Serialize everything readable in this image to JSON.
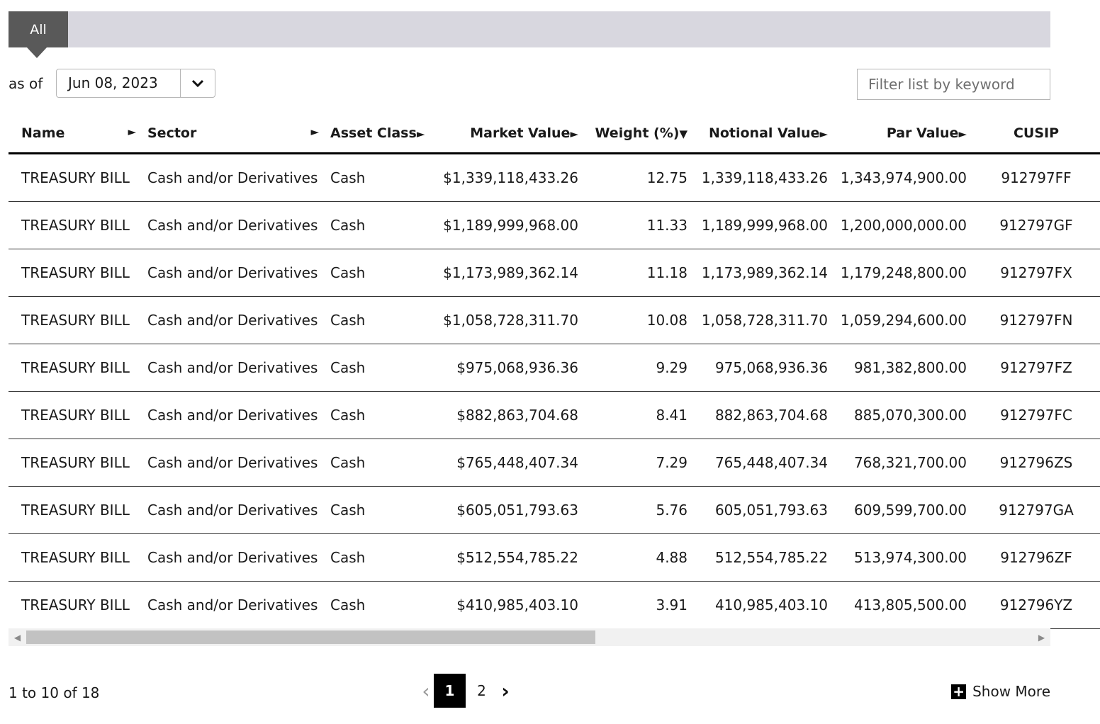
{
  "tabs": [
    {
      "label": "All"
    }
  ],
  "filter": {
    "as_of_label": "as of",
    "date": "Jun 08, 2023"
  },
  "search": {
    "placeholder": "Filter list by keyword"
  },
  "table": {
    "columns": [
      {
        "label": "Name",
        "arrow": "►"
      },
      {
        "label": "Sector",
        "arrow": "►"
      },
      {
        "label": "Asset Class",
        "arrow": "►"
      },
      {
        "label": "Market Value",
        "arrow": "►"
      },
      {
        "label": "Weight (%)",
        "arrow": "▼"
      },
      {
        "label": "Notional Value",
        "arrow": "►"
      },
      {
        "label": "Par Value",
        "arrow": "►"
      },
      {
        "label": "CUSIP",
        "arrow": ""
      }
    ],
    "rows": [
      {
        "name": "TREASURY BILL",
        "sector": "Cash and/or Derivatives",
        "asset_class": "Cash",
        "market_value": "$1,339,118,433.26",
        "weight": "12.75",
        "notional": "1,339,118,433.26",
        "par": "1,343,974,900.00",
        "cusip": "912797FF"
      },
      {
        "name": "TREASURY BILL",
        "sector": "Cash and/or Derivatives",
        "asset_class": "Cash",
        "market_value": "$1,189,999,968.00",
        "weight": "11.33",
        "notional": "1,189,999,968.00",
        "par": "1,200,000,000.00",
        "cusip": "912797GF"
      },
      {
        "name": "TREASURY BILL",
        "sector": "Cash and/or Derivatives",
        "asset_class": "Cash",
        "market_value": "$1,173,989,362.14",
        "weight": "11.18",
        "notional": "1,173,989,362.14",
        "par": "1,179,248,800.00",
        "cusip": "912797FX"
      },
      {
        "name": "TREASURY BILL",
        "sector": "Cash and/or Derivatives",
        "asset_class": "Cash",
        "market_value": "$1,058,728,311.70",
        "weight": "10.08",
        "notional": "1,058,728,311.70",
        "par": "1,059,294,600.00",
        "cusip": "912797FN"
      },
      {
        "name": "TREASURY BILL",
        "sector": "Cash and/or Derivatives",
        "asset_class": "Cash",
        "market_value": "$975,068,936.36",
        "weight": "9.29",
        "notional": "975,068,936.36",
        "par": "981,382,800.00",
        "cusip": "912797FZ"
      },
      {
        "name": "TREASURY BILL",
        "sector": "Cash and/or Derivatives",
        "asset_class": "Cash",
        "market_value": "$882,863,704.68",
        "weight": "8.41",
        "notional": "882,863,704.68",
        "par": "885,070,300.00",
        "cusip": "912797FC"
      },
      {
        "name": "TREASURY BILL",
        "sector": "Cash and/or Derivatives",
        "asset_class": "Cash",
        "market_value": "$765,448,407.34",
        "weight": "7.29",
        "notional": "765,448,407.34",
        "par": "768,321,700.00",
        "cusip": "912796ZS"
      },
      {
        "name": "TREASURY BILL",
        "sector": "Cash and/or Derivatives",
        "asset_class": "Cash",
        "market_value": "$605,051,793.63",
        "weight": "5.76",
        "notional": "605,051,793.63",
        "par": "609,599,700.00",
        "cusip": "912797GA"
      },
      {
        "name": "TREASURY BILL",
        "sector": "Cash and/or Derivatives",
        "asset_class": "Cash",
        "market_value": "$512,554,785.22",
        "weight": "4.88",
        "notional": "512,554,785.22",
        "par": "513,974,300.00",
        "cusip": "912796ZF"
      },
      {
        "name": "TREASURY BILL",
        "sector": "Cash and/or Derivatives",
        "asset_class": "Cash",
        "market_value": "$410,985,403.10",
        "weight": "3.91",
        "notional": "410,985,403.10",
        "par": "413,805,500.00",
        "cusip": "912796YZ"
      }
    ]
  },
  "scrollbar": {
    "position": 0.0
  },
  "footer": {
    "count_text": "1 to 10 of 18",
    "pages": [
      "1",
      "2"
    ],
    "prev_glyph": "‹",
    "next_glyph": "›",
    "show_more_icon": "+",
    "show_more_label": "Show More"
  },
  "icons": {
    "date_dropdown": "chevron-down-icon",
    "show_more": "plus-box-icon"
  }
}
